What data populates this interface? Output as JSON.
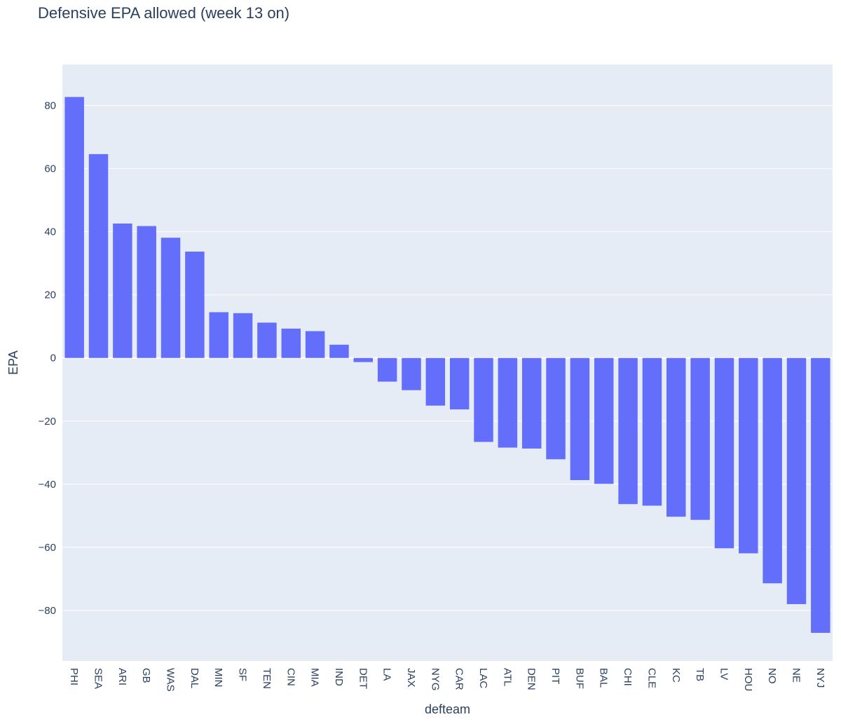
{
  "chart_data": {
    "type": "bar",
    "title": "Defensive EPA allowed (week 13 on)",
    "xlabel": "defteam",
    "ylabel": "EPA",
    "ylim": [
      -96,
      93
    ],
    "yticks": [
      80,
      60,
      40,
      20,
      0,
      -20,
      -40,
      -60,
      -80
    ],
    "ytick_labels": [
      "80",
      "60",
      "40",
      "20",
      "0",
      "−20",
      "−40",
      "−60",
      "−80"
    ],
    "grid": true,
    "legend": "none",
    "bar_color": "#636efa",
    "plot_bg": "#e5ecf6",
    "categories": [
      "PHI",
      "SEA",
      "ARI",
      "GB",
      "WAS",
      "DAL",
      "MIN",
      "SF",
      "TEN",
      "CIN",
      "MIA",
      "IND",
      "DET",
      "LA",
      "JAX",
      "NYG",
      "CAR",
      "LAC",
      "ATL",
      "DEN",
      "PIT",
      "BUF",
      "BAL",
      "CHI",
      "CLE",
      "KC",
      "TB",
      "LV",
      "HOU",
      "NO",
      "NE",
      "NYJ"
    ],
    "values": [
      82.7,
      64.6,
      42.6,
      41.8,
      38.1,
      33.7,
      14.5,
      14.2,
      11.2,
      9.3,
      8.5,
      4.2,
      -1.3,
      -7.5,
      -10.2,
      -15.1,
      -16.3,
      -26.6,
      -28.4,
      -28.7,
      -32.1,
      -38.7,
      -39.9,
      -46.3,
      -46.8,
      -50.3,
      -51.3,
      -60.3,
      -61.9,
      -71.4,
      -78.0,
      -87.1
    ]
  }
}
